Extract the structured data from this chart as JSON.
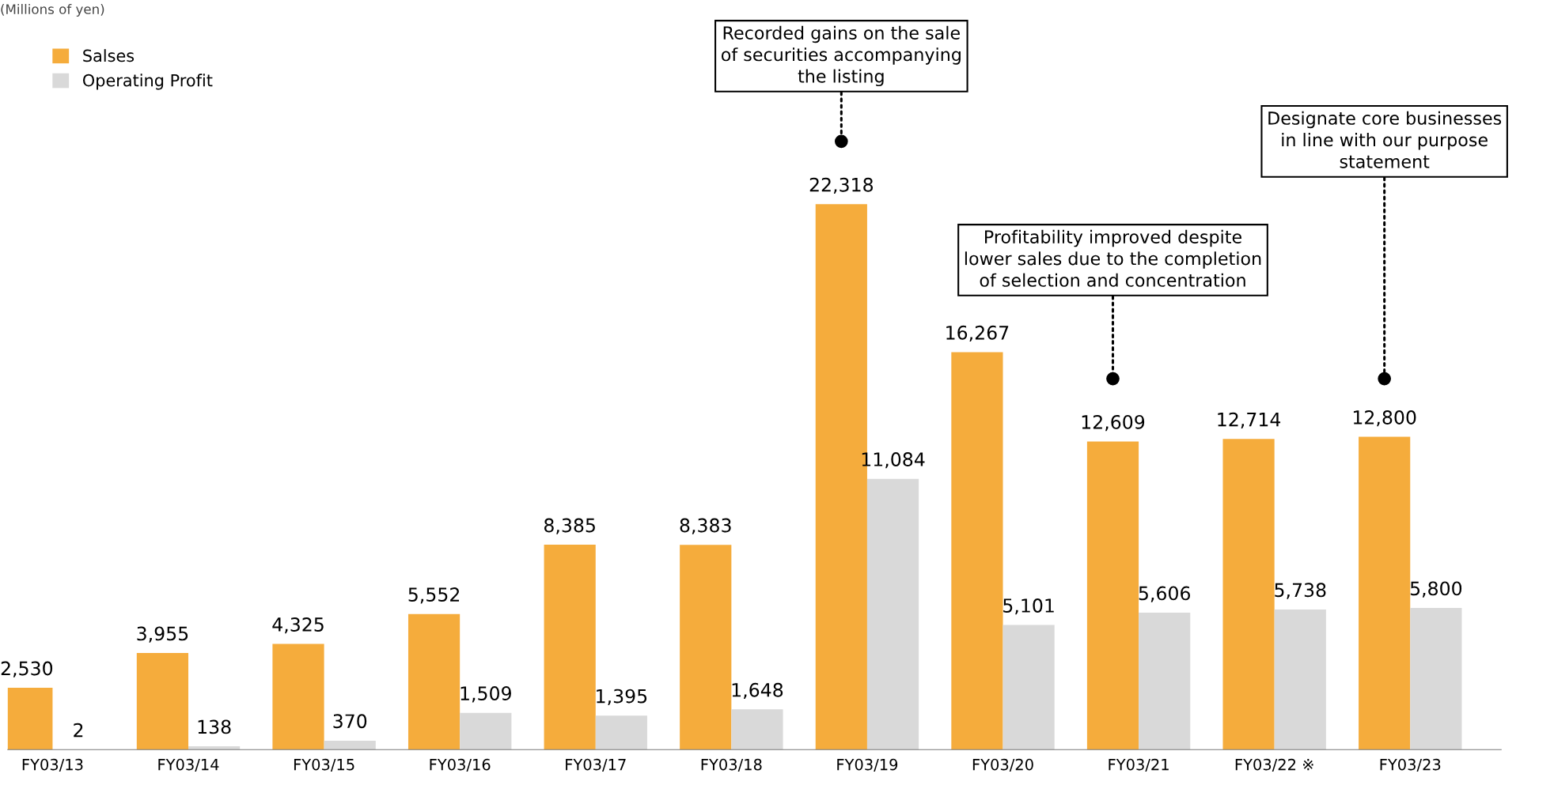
{
  "chart_data": {
    "type": "bar",
    "categories": [
      "FY03/13",
      "FY03/14",
      "FY03/15",
      "FY03/16",
      "FY03/17",
      "FY03/18",
      "FY03/19",
      "FY03/20",
      "FY03/21",
      "FY03/22 ※",
      "FY03/23"
    ],
    "series": [
      {
        "name": "Salses",
        "color": "#f5ac3c",
        "values": [
          2530,
          3955,
          4325,
          5552,
          8385,
          8383,
          22318,
          16267,
          12609,
          12714,
          12800
        ],
        "value_labels": [
          "2,530",
          "3,955",
          "4,325",
          "5,552",
          "8,385",
          "8,383",
          "22,318",
          "16,267",
          "12,609",
          "12,714",
          "12,800"
        ]
      },
      {
        "name": "Operating Profit",
        "color": "#d9d9d9",
        "values": [
          2,
          138,
          370,
          1509,
          1395,
          1648,
          11084,
          5101,
          5606,
          5738,
          5800
        ],
        "value_labels": [
          "2",
          "138",
          "370",
          "1,509",
          "1,395",
          "1,648",
          "11,084",
          "5,101",
          "5,606",
          "5,738",
          "5,800"
        ]
      }
    ],
    "legend": "top left",
    "grid": false,
    "annotations": [
      "(Millions of yen)",
      "Recorded gains on the sale\nof securities accompanying\nthe listing",
      "Profitability improved despite\nlower sales due to the completion\nof selection and concentration",
      "Designate core businesses\nin line with our purpose\nstatement"
    ]
  }
}
